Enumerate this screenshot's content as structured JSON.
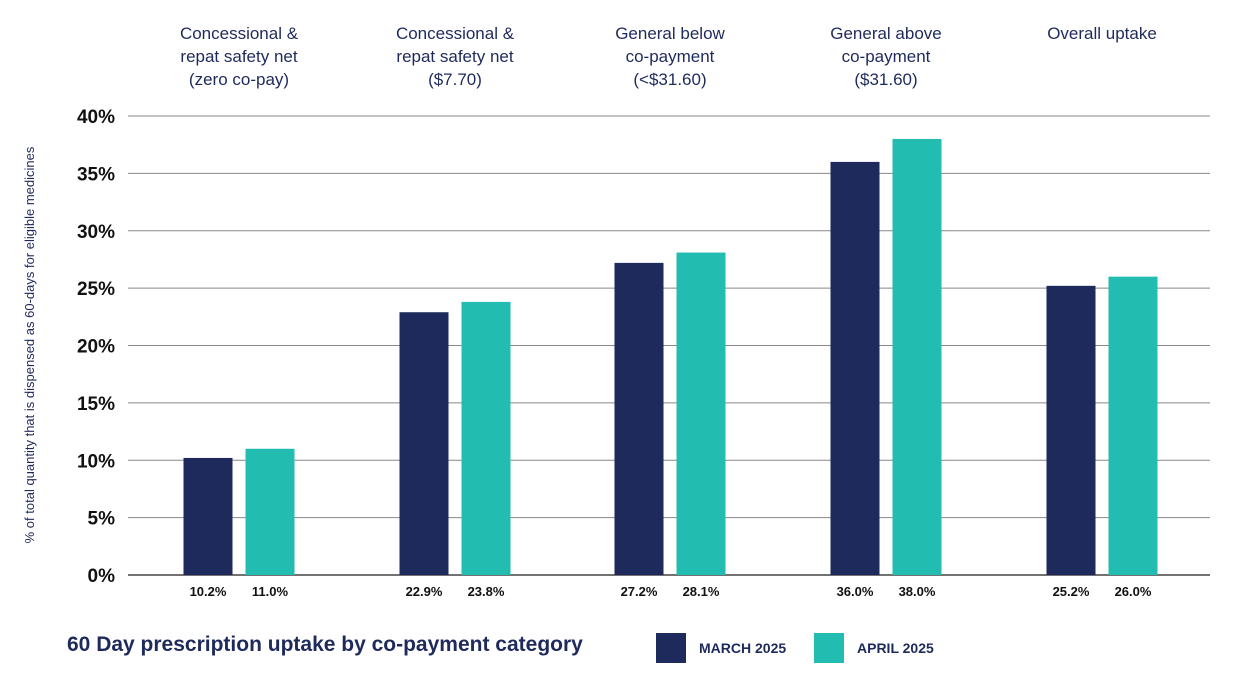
{
  "chart_data": {
    "type": "bar",
    "title": "60 Day prescription uptake by co-payment category",
    "ylabel": "% of total quantity that is dispensed as 60-days for eligible medicines",
    "xlabel": "",
    "ylim": [
      0,
      40
    ],
    "yticks": [
      "0%",
      "5%",
      "10%",
      "15%",
      "20%",
      "25%",
      "30%",
      "35%",
      "40%"
    ],
    "grid": true,
    "legend_position": "bottom",
    "categories": [
      [
        "Concessional &",
        "repat safety net",
        "(zero co-pay)"
      ],
      [
        "Concessional &",
        "repat safety net",
        "($7.70)"
      ],
      [
        "General below",
        "co-payment",
        "(<$31.60)"
      ],
      [
        "General above",
        "co-payment",
        "($31.60)"
      ],
      [
        "Overall uptake"
      ]
    ],
    "series": [
      {
        "name": "MARCH 2025",
        "color": "#1f2a5c",
        "values": [
          10.2,
          22.9,
          27.2,
          36.0,
          25.2
        ],
        "labels": [
          "10.2%",
          "22.9%",
          "27.2%",
          "36.0%",
          "25.2%"
        ]
      },
      {
        "name": "APRIL 2025",
        "color": "#22bdb0",
        "values": [
          11.0,
          23.8,
          28.1,
          38.0,
          26.0
        ],
        "labels": [
          "11.0%",
          "23.8%",
          "28.1%",
          "38.0%",
          "26.0%"
        ]
      }
    ]
  }
}
